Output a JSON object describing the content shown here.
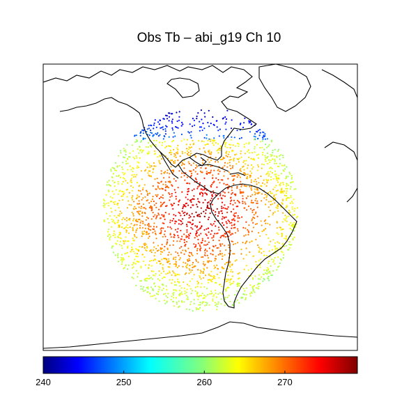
{
  "title": "Obs Tb – abi_g19 Ch 10",
  "colorbar": {
    "min": 240,
    "max": 279,
    "ticks": [
      240,
      250,
      260,
      270
    ],
    "colormap": "jet",
    "colors": [
      "#00007f",
      "#0000ff",
      "#007fff",
      "#00ffff",
      "#7fff7f",
      "#ffff00",
      "#ff7f00",
      "#ff0000",
      "#7f0000"
    ]
  },
  "map": {
    "projection": "geostationary full disk",
    "coastlines": true,
    "scatter": true
  }
}
